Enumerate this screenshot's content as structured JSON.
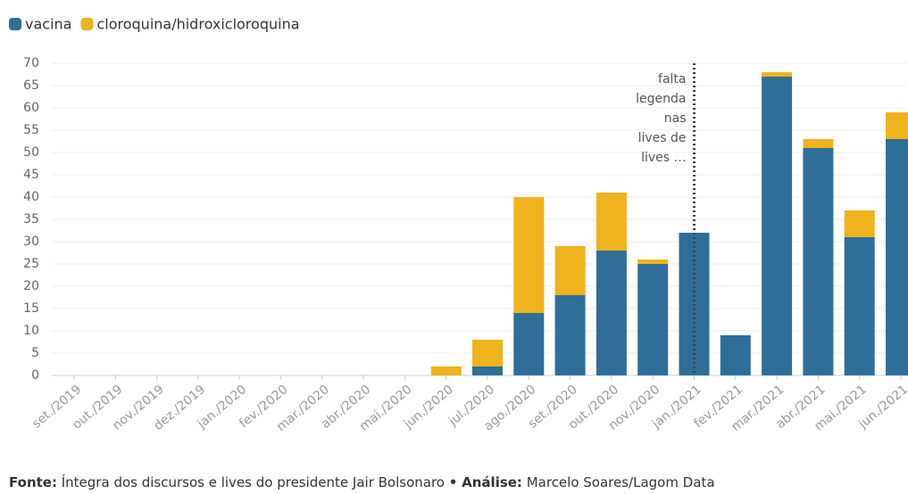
{
  "chart_data": {
    "type": "stacked_bar",
    "categories": [
      "set./2019",
      "out./2019",
      "nov./2019",
      "dez./2019",
      "jan./2020",
      "fev./2020",
      "mar./2020",
      "abr./2020",
      "mai./2020",
      "jun./2020",
      "jul./2020",
      "ago./2020",
      "set./2020",
      "out./2020",
      "nov./2020",
      "jan./2021",
      "fev./2021",
      "mar./2021",
      "abr./2021",
      "mai./2021",
      "jun./2021"
    ],
    "series": [
      {
        "name": "vacina",
        "color": "#2e6e99",
        "values": [
          0,
          0,
          0,
          0,
          0,
          0,
          0,
          0,
          0,
          0,
          2,
          14,
          18,
          28,
          25,
          32,
          9,
          67,
          51,
          31,
          53
        ]
      },
      {
        "name": "cloroquina/hidroxicloroquina",
        "color": "#efb31d",
        "values": [
          0,
          0,
          0,
          0,
          0,
          0,
          0,
          0,
          0,
          2,
          6,
          26,
          11,
          13,
          1,
          0,
          0,
          1,
          2,
          6,
          6
        ]
      }
    ],
    "ylim": [
      0,
      70
    ],
    "yticks": [
      0,
      5,
      10,
      15,
      20,
      25,
      30,
      35,
      40,
      45,
      50,
      55,
      60,
      65,
      70
    ],
    "grid": true,
    "annotation": {
      "category": "jan./2021",
      "lines": [
        "falta",
        "legenda",
        "nas",
        "lives de",
        "lives …"
      ]
    },
    "source": {
      "label": "Fonte:",
      "text": "Íntegra dos discursos e lives do presidente Jair Bolsonaro",
      "separator": "•",
      "analysis_label": "Análise:",
      "analysis_text": "Marcelo Soares/Lagom Data"
    }
  }
}
